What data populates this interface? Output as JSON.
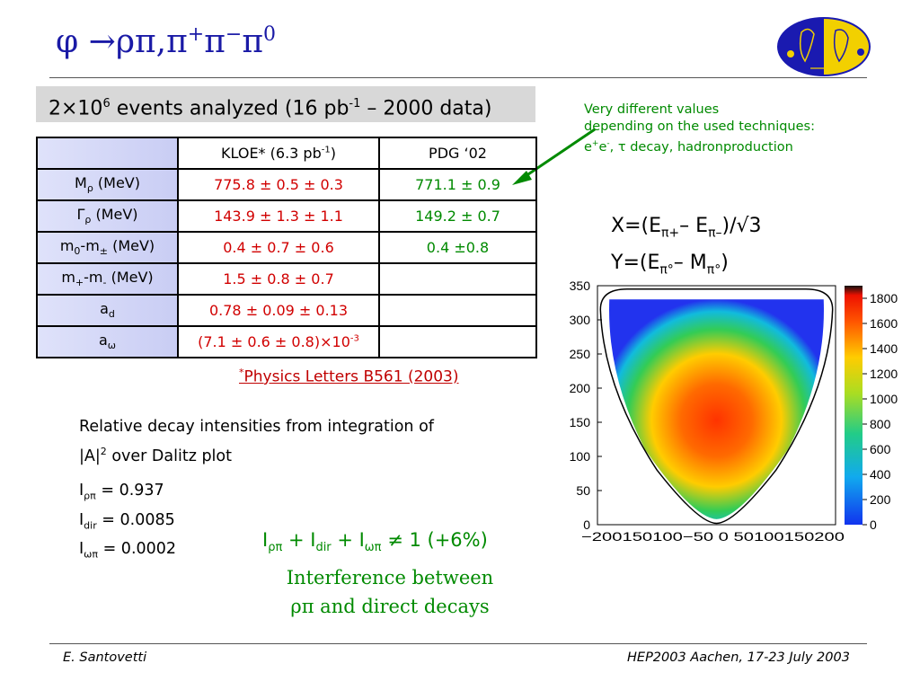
{
  "title": {
    "symbol": "φ",
    "arrow": "→",
    "products": "ρπ,π",
    "sup1": "+",
    "mid": "π",
    "sup2": "−",
    "last": "π",
    "sup3": "0"
  },
  "events": {
    "pre": "2×10",
    "exp": "6",
    "mid": " events analyzed (16 pb",
    "exp2": "-1",
    "post": " – 2000 data)"
  },
  "note": {
    "line1": "Very different values",
    "line2": "depending on the used techniques:",
    "line3_a": "e",
    "line3_sup1": "+",
    "line3_b": "e",
    "line3_sup2": "-",
    "line3_c": ", τ decay, hadronproduction"
  },
  "table": {
    "header": {
      "kloe_pre": "KLOE* (6.3 pb",
      "kloe_exp": "-1",
      "kloe_post": ")",
      "pdg": "PDG ‘02"
    },
    "rows": [
      {
        "base": "M",
        "sub": "ρ",
        "post": " (MeV)",
        "kloe": "775.8 ± 0.5 ± 0.3",
        "pdg": "771.1 ± 0.9"
      },
      {
        "base": "Γ",
        "sub": "ρ",
        "post": " (MeV)",
        "kloe": "143.9 ± 1.3 ± 1.1",
        "pdg": "149.2 ± 0.7"
      },
      {
        "base": "m",
        "sub": "0",
        "mid": "-m",
        "sub2": "±",
        "post": " (MeV)",
        "kloe": "0.4 ± 0.7 ± 0.6",
        "pdg": "0.4 ±0.8"
      },
      {
        "base": "m",
        "sub": "+",
        "mid": "-m",
        "sub2": "-",
        "post": " (MeV)",
        "kloe": "1.5 ± 0.8 ± 0.7",
        "pdg": ""
      },
      {
        "base": "a",
        "sub": "d",
        "post": "",
        "kloe": "0.78 ± 0.09 ± 0.13",
        "pdg": ""
      },
      {
        "base": "a",
        "sub": "ω",
        "post": "",
        "kloe_pre": "(7.1 ± 0.6 ± 0.8)×10",
        "kloe_exp": "-3",
        "pdg": ""
      }
    ]
  },
  "reference": {
    "star": "*",
    "text": "Physics Letters B561 (2003)"
  },
  "relative": {
    "line1": "Relative decay intensities from integration of",
    "pre2": "|A|",
    "exp2": "2",
    "post2": " over Dalitz plot"
  },
  "intensities": [
    {
      "base": "I",
      "sub": "ρπ",
      "value": " = 0.937"
    },
    {
      "base": "I",
      "sub": "dir",
      "value": " = 0.0085"
    },
    {
      "base": "I",
      "sub": "ωπ",
      "value": " = 0.0002"
    }
  ],
  "sum": {
    "t1": "I",
    "s1": "ρπ",
    "t2": " + I",
    "s2": "dir",
    "t3": " + I",
    "s3": "ωπ",
    "t4": " ≠ 1  (+6%)"
  },
  "interference": {
    "line1": "Interference between",
    "line2": "ρπ and direct decays"
  },
  "xy": {
    "x": {
      "a": "X=(E",
      "s1": "π+",
      "b": "– E",
      "s2": "π–",
      "c": ")/√3"
    },
    "y": {
      "a": "Y=(E",
      "s1": "π°",
      "b": "– M",
      "s2": "π°",
      "c": ")"
    }
  },
  "chart_data": {
    "type": "heatmap",
    "title": "",
    "xlabel": "",
    "ylabel": "",
    "xlim": [
      -200,
      200
    ],
    "ylim": [
      0,
      350
    ],
    "x_ticks": [
      "−200",
      "150",
      "100",
      "−50",
      "0",
      "50",
      "100",
      "150",
      "200"
    ],
    "y_ticks": [
      0,
      50,
      100,
      150,
      200,
      250,
      300,
      350
    ],
    "colorbar_ticks": [
      0,
      200,
      400,
      600,
      800,
      1000,
      1200,
      1400,
      1600,
      1800
    ],
    "colorbar_max": 1900,
    "grid": false,
    "colors": {
      "low": "#2222ee",
      "mid": "#22cc55",
      "high": "#ff3300"
    }
  },
  "footer": {
    "author": "E. Santovetti",
    "conference": "HEP2003 Aachen, 17-23 July 2003"
  }
}
